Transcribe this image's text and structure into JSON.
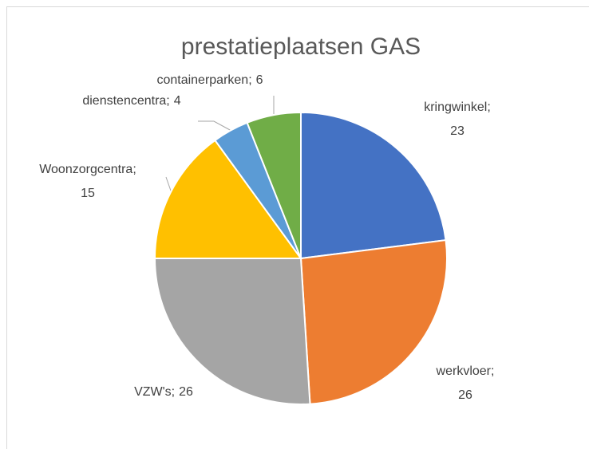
{
  "chart_data": {
    "type": "pie",
    "title": "prestatieplaatsen GAS",
    "categories": [
      "kringwinkel;",
      "werkvloer;",
      "VZW's;",
      "Woonzorgcentra;",
      "dienstencentra;",
      "containerparken;"
    ],
    "values": [
      23,
      26,
      26,
      15,
      4,
      6
    ],
    "colors": [
      "#4472c4",
      "#ed7d31",
      "#a5a5a5",
      "#ffc000",
      "#5b9bd5",
      "#70ad47"
    ]
  }
}
